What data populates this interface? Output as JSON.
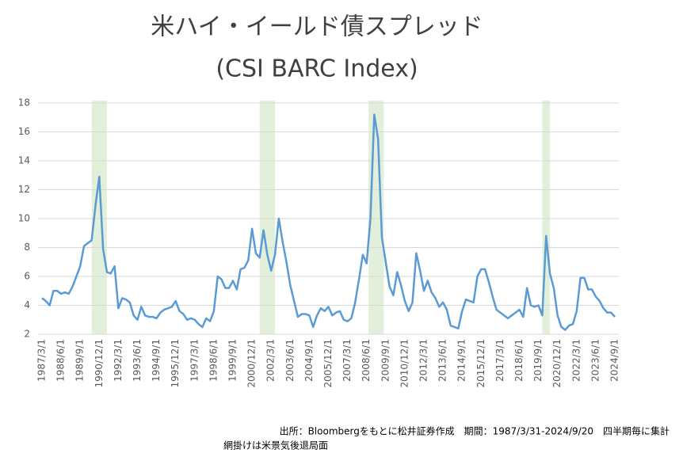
{
  "chart_data": {
    "type": "line",
    "title": "米ハイ・イールド債スプレッド",
    "subtitle": "(CSI BARC Index)",
    "source": "出所：Bloombergをもとに松井証券作成　期間：1987/3/31-2024/9/20　四半期毎に集計",
    "note": "網掛けは米景気後退局面",
    "categories": [
      "1987/3/1",
      null,
      null,
      null,
      null,
      "1988/6/1",
      null,
      null,
      null,
      null,
      "1989/9/1",
      null,
      null,
      null,
      null,
      "1990/12/1",
      null,
      null,
      null,
      null,
      "1992/3/1",
      null,
      null,
      null,
      null,
      "1993/6/1",
      null,
      null,
      null,
      null,
      "1994/9/1",
      null,
      null,
      null,
      null,
      "1995/12/1",
      null,
      null,
      null,
      null,
      "1997/3/1",
      null,
      null,
      null,
      null,
      "1998/6/1",
      null,
      null,
      null,
      null,
      "1999/9/1",
      null,
      null,
      null,
      null,
      "2000/12/1",
      null,
      null,
      null,
      null,
      "2002/3/1",
      null,
      null,
      null,
      null,
      "2003/6/1",
      null,
      null,
      null,
      null,
      "2004/9/1",
      null,
      null,
      null,
      null,
      "2005/12/1",
      null,
      null,
      null,
      null,
      "2007/3/1",
      null,
      null,
      null,
      null,
      "2008/6/1",
      null,
      null,
      null,
      null,
      "2009/9/1",
      null,
      null,
      null,
      null,
      "2010/12/1",
      null,
      null,
      null,
      null,
      "2012/3/1",
      null,
      null,
      null,
      null,
      "2013/6/1",
      null,
      null,
      null,
      null,
      "2014/9/1",
      null,
      null,
      null,
      null,
      "2015/12/1",
      null,
      null,
      null,
      null,
      "2017/3/1",
      null,
      null,
      null,
      null,
      "2018/6/1",
      null,
      null,
      null,
      null,
      "2019/9/1",
      null,
      null,
      null,
      null,
      "2020/12/1",
      null,
      null,
      null,
      null,
      "2022/3/1",
      null,
      null,
      null,
      null,
      "2023/6/1",
      null,
      null,
      null,
      null,
      "2024/9/1"
    ],
    "values": [
      4.5,
      4.3,
      4.0,
      5.0,
      5.0,
      4.8,
      4.9,
      4.8,
      5.3,
      6.0,
      6.7,
      8.1,
      8.3,
      8.5,
      10.9,
      12.9,
      7.9,
      6.3,
      6.2,
      6.7,
      3.8,
      4.5,
      4.4,
      4.2,
      3.3,
      3.0,
      3.9,
      3.3,
      3.2,
      3.2,
      3.1,
      3.5,
      3.7,
      3.8,
      3.9,
      4.3,
      3.6,
      3.4,
      3.0,
      3.1,
      3.0,
      2.7,
      2.5,
      3.1,
      2.9,
      3.6,
      6.0,
      5.8,
      5.2,
      5.2,
      5.7,
      5.1,
      6.5,
      6.6,
      7.1,
      9.3,
      7.6,
      7.3,
      9.2,
      7.5,
      6.4,
      7.5,
      10.0,
      8.4,
      7.0,
      5.4,
      4.3,
      3.2,
      3.4,
      3.4,
      3.3,
      2.5,
      3.3,
      3.8,
      3.6,
      3.9,
      3.3,
      3.5,
      3.6,
      3.0,
      2.9,
      3.1,
      4.2,
      5.8,
      7.5,
      6.9,
      10.0,
      17.2,
      15.5,
      8.7,
      7.0,
      5.3,
      4.7,
      6.3,
      5.4,
      4.3,
      3.6,
      4.2,
      7.6,
      6.4,
      5.0,
      5.7,
      4.9,
      4.5,
      3.9,
      4.2,
      3.7,
      2.6,
      2.5,
      2.4,
      3.6,
      4.4,
      4.3,
      4.2,
      6.0,
      6.5,
      6.5,
      5.6,
      4.6,
      3.7,
      3.5,
      3.3,
      3.1,
      3.3,
      3.5,
      3.7,
      3.2,
      5.2,
      4.0,
      3.9,
      4.0,
      3.3,
      8.8,
      6.2,
      5.2,
      3.3,
      2.5,
      2.3,
      2.6,
      2.7,
      3.6,
      5.9,
      5.9,
      5.1,
      5.1,
      4.6,
      4.3,
      3.8,
      3.5,
      3.5,
      3.2
    ],
    "color": "#5b9bd5",
    "shade_color": "#e2efda",
    "shaded_regions": [
      [
        13,
        17
      ],
      [
        57,
        61
      ],
      [
        85.5,
        89.5
      ],
      [
        131,
        133
      ]
    ],
    "ylim": [
      2,
      18
    ],
    "yticks": [
      2,
      4,
      6,
      8,
      10,
      12,
      14,
      16,
      18
    ],
    "grid": true
  }
}
